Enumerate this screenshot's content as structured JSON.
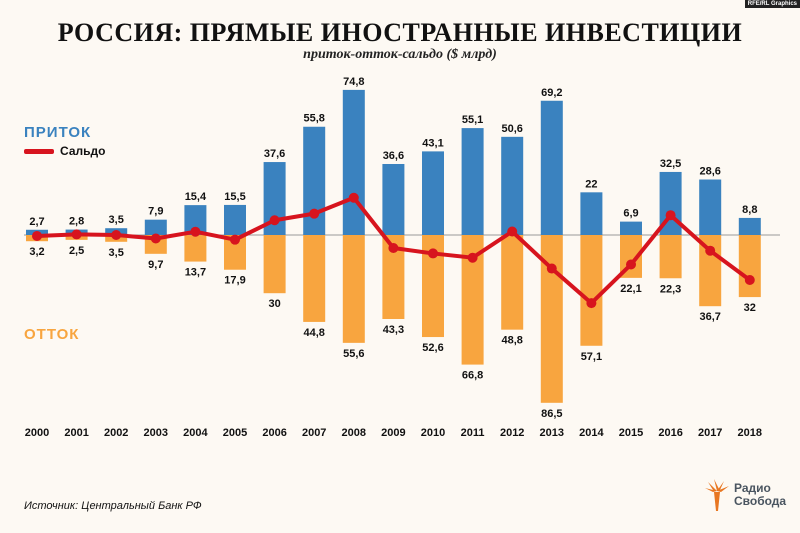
{
  "credit": "RFE/RL Graphics",
  "source": "Источник: Центральный Банк РФ",
  "logo": {
    "line1": "Радио",
    "line2": "Свобода"
  },
  "colors": {
    "inflow": "#3a82bf",
    "outflow": "#f8a53f",
    "net": "#d7141e",
    "background": "#fdf9f3"
  },
  "chart_data": {
    "type": "bar",
    "title": "РОССИЯ: ПРЯМЫЕ ИНОСТРАННЫЕ ИНВЕСТИЦИИ",
    "subtitle": "приток-отток-сальдо ($ млрд)",
    "categories": [
      "2000",
      "2001",
      "2002",
      "2003",
      "2004",
      "2005",
      "2006",
      "2007",
      "2008",
      "2009",
      "2010",
      "2011",
      "2012",
      "2013",
      "2014",
      "2015",
      "2016",
      "2017",
      "2018"
    ],
    "series": [
      {
        "name": "ПРИТОК",
        "type": "bar",
        "values": [
          2.7,
          2.8,
          3.5,
          7.9,
          15.4,
          15.5,
          37.6,
          55.8,
          74.8,
          36.6,
          43.1,
          55.1,
          50.6,
          69.2,
          22,
          6.9,
          32.5,
          28.6,
          8.8
        ],
        "labels": [
          "2,7",
          "2,8",
          "3,5",
          "7,9",
          "15,4",
          "15,5",
          "37,6",
          "55,8",
          "74,8",
          "36,6",
          "43,1",
          "55,1",
          "50,6",
          "69,2",
          "22",
          "6,9",
          "32,5",
          "28,6",
          "8,8"
        ]
      },
      {
        "name": "ОТТОК",
        "type": "bar",
        "values": [
          3.2,
          2.5,
          3.5,
          9.7,
          13.7,
          17.9,
          30,
          44.8,
          55.6,
          43.3,
          52.6,
          66.8,
          48.8,
          86.5,
          57.1,
          22.1,
          22.3,
          36.7,
          32
        ],
        "labels": [
          "3,2",
          "2,5",
          "3,5",
          "9,7",
          "13,7",
          "17,9",
          "30",
          "44,8",
          "55,6",
          "43,3",
          "52,6",
          "66,8",
          "48,8",
          "86,5",
          "57,1",
          "22,1",
          "22,3",
          "36,7",
          "32"
        ]
      },
      {
        "name": "Сальдо",
        "type": "line",
        "values": [
          -0.5,
          0.3,
          0,
          -1.8,
          1.7,
          -2.4,
          7.6,
          11,
          19.2,
          -6.7,
          -9.5,
          -11.7,
          1.8,
          -17.3,
          -35.1,
          -15.2,
          10.2,
          -8.1,
          -23.2
        ]
      }
    ],
    "ylim": [
      -90,
      80
    ],
    "grid": false,
    "legend": "left"
  }
}
